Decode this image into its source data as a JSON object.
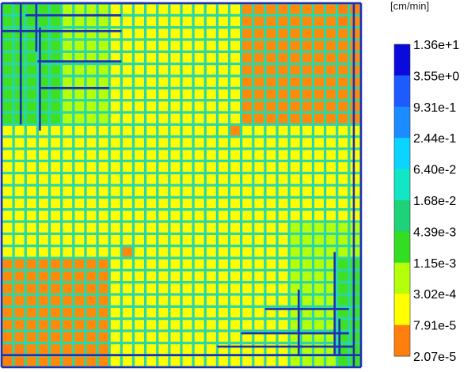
{
  "chart_data": {
    "type": "heatmap",
    "rows": 30,
    "cols": 30,
    "unit_label": "[cm/min]",
    "cell_color_index": {
      "base": 3,
      "regions": [
        {
          "rows": [
            0,
            9
          ],
          "cols": [
            0,
            5
          ],
          "level": 5
        },
        {
          "rows": [
            0,
            9
          ],
          "cols": [
            5,
            9
          ],
          "level": 4
        },
        {
          "rows": [
            0,
            0
          ],
          "cols": [
            9,
            20
          ],
          "level": 3
        },
        {
          "rows": [
            0,
            9
          ],
          "cols": [
            20,
            30
          ],
          "level": 2
        },
        {
          "rows": [
            0,
            0
          ],
          "cols": [
            28,
            30
          ],
          "level": 1
        },
        {
          "rows": [
            1,
            1
          ],
          "cols": [
            28,
            29
          ],
          "level": 1
        },
        {
          "rows": [
            10,
            10
          ],
          "cols": [
            19,
            19
          ],
          "level": 2
        },
        {
          "rows": [
            20,
            20
          ],
          "cols": [
            10,
            10
          ],
          "level": 2
        },
        {
          "rows": [
            21,
            29
          ],
          "cols": [
            0,
            9
          ],
          "level": 2
        },
        {
          "rows": [
            28,
            29
          ],
          "cols": [
            0,
            2
          ],
          "level": 1
        },
        {
          "rows": [
            18,
            29
          ],
          "cols": [
            24,
            30
          ],
          "level": 4
        },
        {
          "rows": [
            21,
            29
          ],
          "cols": [
            28,
            30
          ],
          "level": 5
        }
      ]
    },
    "colorbar": {
      "colors": [
        "#ee1a1a",
        "#ff8a0a",
        "#ffff00",
        "#a8ff0a",
        "#3fe022",
        "#2bdc98",
        "#28d8d8",
        "#1a8cff",
        "#0a0ad8"
      ],
      "labels": [
        "2.07e-5",
        "7.91e-5",
        "3.02e-4",
        "1.15e-3",
        "4.39e-3",
        "1.68e-2",
        "6.40e-2",
        "2.44e-1",
        "9.31e-1",
        "3.55e+0",
        "1.36e+1"
      ],
      "band_colors": [
        "#ee1a1a",
        "#ff7f0e",
        "#ffff00",
        "#b6ff0a",
        "#33dd22",
        "#1ed27a",
        "#12e6c4",
        "#0ad4ff",
        "#1a8cff",
        "#1e5bff",
        "#0a0adc"
      ]
    },
    "fracture_color": "#2bd6a8",
    "channel_color": "#1f2fb4"
  }
}
